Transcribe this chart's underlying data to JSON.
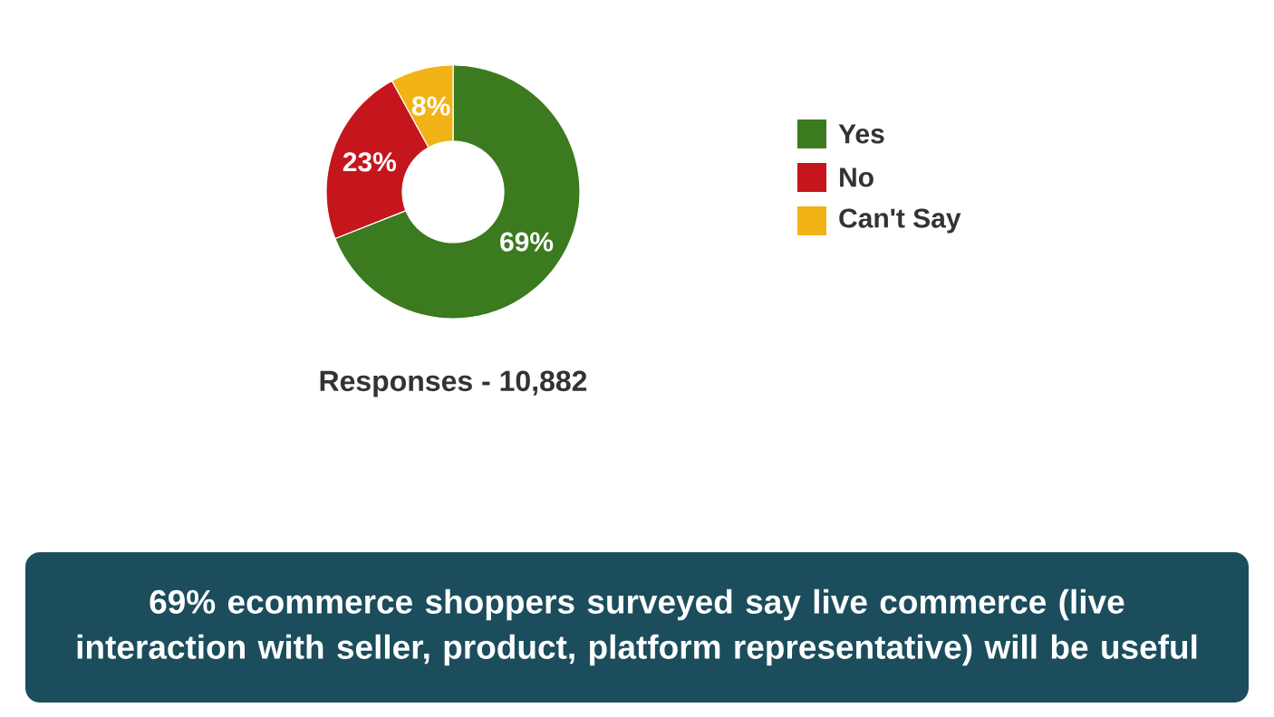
{
  "chart_data": {
    "type": "donut",
    "title": "69% ecommerce shoppers surveyed say live commerce (live interaction with seller, product, platform representative) will be useful",
    "categories": [
      "Yes",
      "No",
      "Can't Say"
    ],
    "values": [
      69,
      23,
      8
    ],
    "colors": [
      "#3b7a1e",
      "#c4161c",
      "#f2b316"
    ],
    "value_labels": [
      "69%",
      "23%",
      "8%"
    ],
    "legend": "right",
    "annotations": [
      "Responses - 10,882"
    ]
  }
}
